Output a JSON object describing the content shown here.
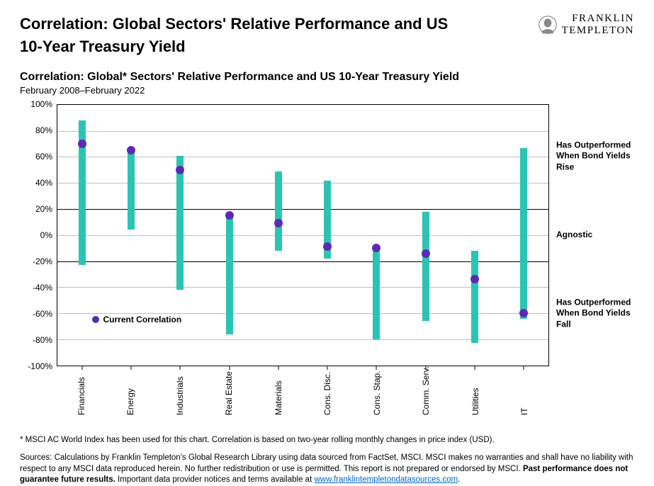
{
  "header": {
    "title_line1": "Correlation: Global Sectors' Relative Performance and US",
    "title_line2": "10-Year Treasury Yield",
    "logo_line1": "FRANKLIN",
    "logo_line2": "TEMPLETON"
  },
  "subtitle": "Correlation: Global* Sectors' Relative Performance and US 10-Year Treasury Yield",
  "daterange": "February 2008–February 2022",
  "chart": {
    "type": "range-dot",
    "ylim": [
      -100,
      100
    ],
    "ytick_step": 20,
    "yticks": [
      100,
      80,
      60,
      40,
      20,
      0,
      -20,
      -40,
      -60,
      -80,
      -100
    ],
    "ytick_labels": [
      "100%",
      "80%",
      "60%",
      "40%",
      "20%",
      "0%",
      "-20%",
      "-40%",
      "-60%",
      "-80%",
      "-100%"
    ],
    "band_upper": 20,
    "band_lower": -20,
    "bar_color": "#2bc4b2",
    "dot_color": "#5b2bb5",
    "grid_color": "#bfbfbf",
    "border_color": "#000000",
    "background_color": "#ffffff",
    "categories": [
      "Financials",
      "Energy",
      "Industrials",
      "Real Estate",
      "Materials",
      "Cons. Disc.",
      "Cons. Stap.",
      "Comm. Serv.",
      "Utilities",
      "IT"
    ],
    "range_low": [
      -23,
      4,
      -42,
      -76,
      -12,
      -18,
      -80,
      -66,
      -83,
      -64
    ],
    "range_high": [
      88,
      66,
      61,
      15,
      49,
      42,
      -8,
      18,
      -12,
      67
    ],
    "current": [
      70,
      65,
      50,
      15,
      9,
      -9,
      -10,
      -14,
      -34,
      -60
    ],
    "legend_label": "Current Correlation",
    "legend_pos_pct": {
      "x": 7,
      "y_value": -65
    },
    "right_labels": {
      "upper": "Has Outperformed When Bond Yields Rise",
      "mid": "Agnostic",
      "lower": "Has Outperformed When Bond Yields Fall"
    }
  },
  "footnote": "* MSCI AC World Index has been used for this chart. Correlation is based on two-year rolling monthly changes in price index (USD).",
  "sources_pre": "Sources: Calculations by Franklin Templeton's Global Research Library using data sourced from FactSet, MSCI. MSCI makes no warranties and shall have no liability with respect to any MSCI data reproduced herein. No further redistribution or use is permitted. This report is not prepared or endorsed by MSCI. ",
  "sources_bold": "Past performance does not guarantee future results.",
  "sources_post": " Important data provider notices and terms available at ",
  "sources_link": "www.franklintempletondatasources.com",
  "sources_end": "."
}
